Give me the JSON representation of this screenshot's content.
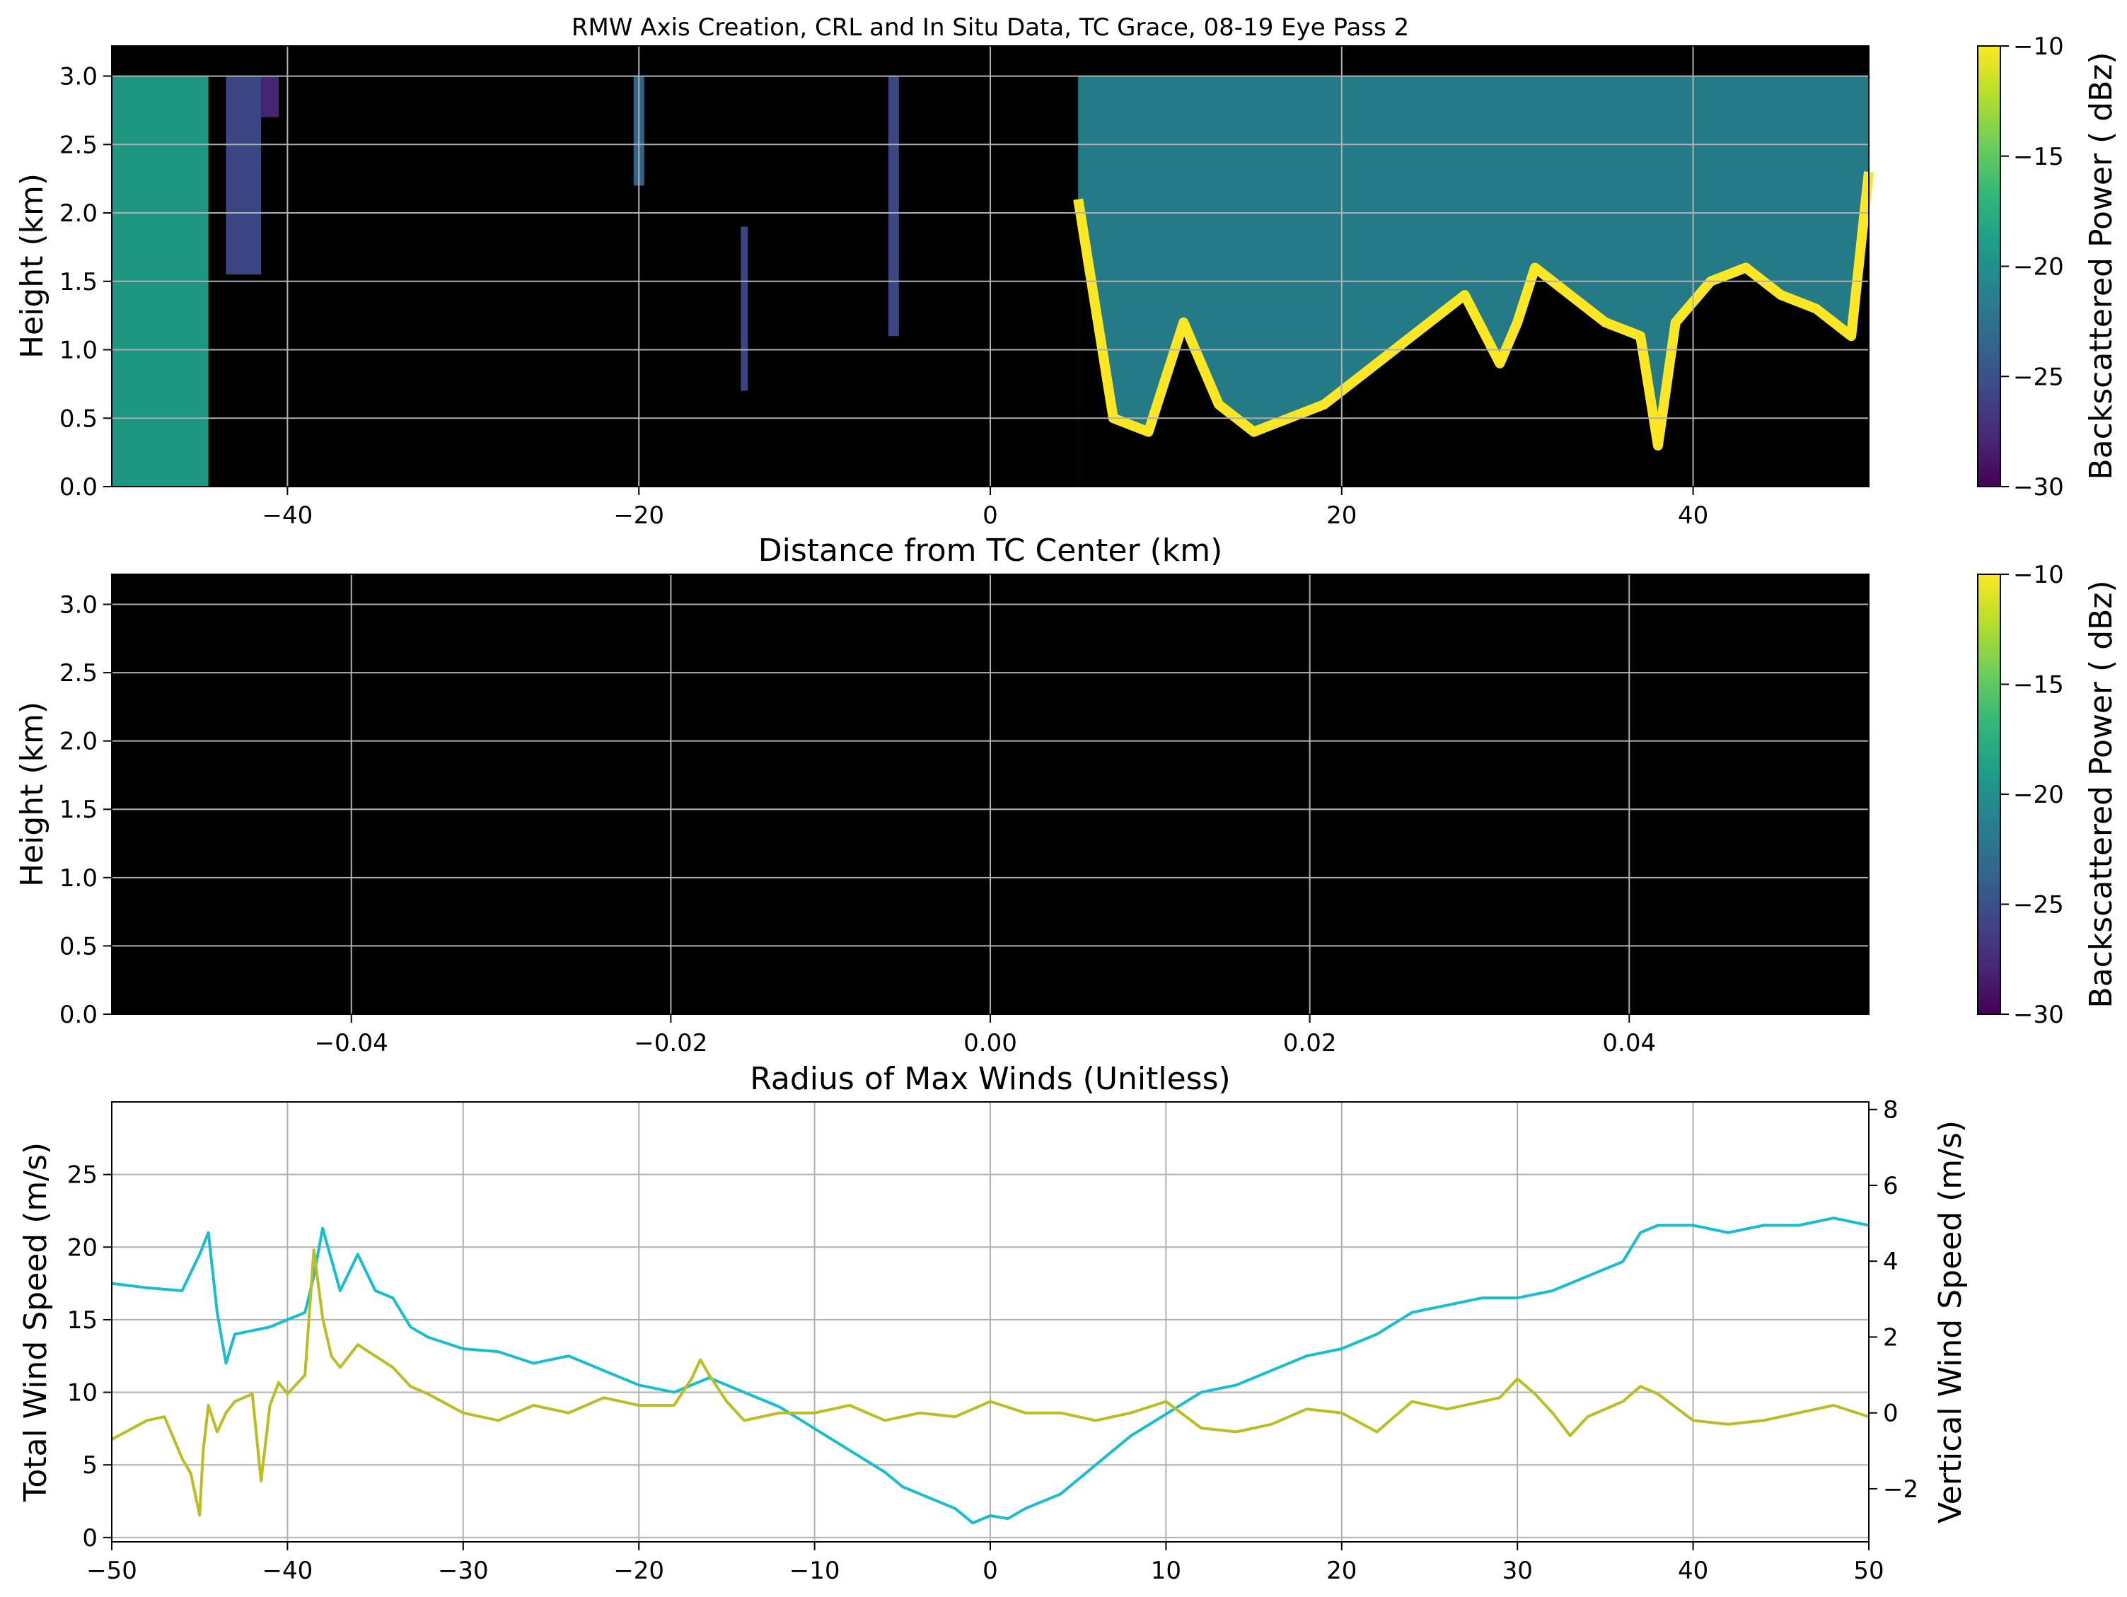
{
  "figure": {
    "title": "RMW Axis Creation, CRL and In Situ Data, TC Grace, 08-19 Eye Pass 2"
  },
  "colors": {
    "background_black": "#000000",
    "grid": "#b0b0b0",
    "total_wind": "#17becf",
    "vertical_wind": "#bcbd22",
    "viridis": [
      "#440154",
      "#482878",
      "#3e4989",
      "#31688e",
      "#26828e",
      "#1f9e89",
      "#35b779",
      "#6ece58",
      "#b5de2b",
      "#fde725"
    ]
  },
  "chart_data": [
    {
      "type": "heatmap",
      "name": "crl-distance-panel",
      "xlabel": "Distance from TC Center (km)",
      "ylabel": "Height (km)",
      "xlim": [
        -50,
        50
      ],
      "ylim": [
        0,
        3.22
      ],
      "xticks": [
        -40,
        -20,
        0,
        20,
        40
      ],
      "xtick_labels": [
        "−40",
        "−20",
        "0",
        "20",
        "40"
      ],
      "yticks": [
        0.0,
        0.5,
        1.0,
        1.5,
        2.0,
        2.5,
        3.0
      ],
      "ytick_labels": [
        "0.0",
        "0.5",
        "1.0",
        "1.5",
        "2.0",
        "2.5",
        "3.0"
      ],
      "grid": true,
      "colorbar": {
        "label": "Backscattered Power ( dBz)",
        "range": [
          -30,
          -10
        ],
        "ticks": [
          -30,
          -25,
          -20,
          -15,
          -10
        ],
        "tick_labels": [
          "−30",
          "−25",
          "−20",
          "−15",
          "−10"
        ]
      },
      "cloud_regions": [
        {
          "x0": -50,
          "x1": -44.5,
          "top": 3.0,
          "bottom": 0.0,
          "value": -20
        },
        {
          "x0": -43.5,
          "x1": -41.5,
          "top": 3.0,
          "bottom": 1.55,
          "value": -25
        },
        {
          "x0": -41.5,
          "x1": -40.5,
          "top": 3.0,
          "bottom": 2.7,
          "value": -27
        },
        {
          "x0": -20.3,
          "x1": -19.7,
          "top": 3.0,
          "bottom": 2.2,
          "value": -24
        },
        {
          "x0": -14.2,
          "x1": -13.8,
          "top": 1.9,
          "bottom": 0.7,
          "value": -26
        },
        {
          "x0": -5.8,
          "x1": -5.2,
          "top": 3.0,
          "bottom": 1.1,
          "value": -25
        },
        {
          "x0": 5.0,
          "x1": 50.0,
          "top": 3.0,
          "bottom": 0.0,
          "value": -22
        }
      ],
      "cloud_base": {
        "x": [
          5,
          7,
          9,
          11,
          13,
          15,
          17,
          19,
          21,
          23,
          25,
          27,
          29,
          30,
          31,
          33,
          35,
          37,
          38,
          39,
          41,
          43,
          45,
          47,
          49,
          50
        ],
        "height": [
          2.1,
          0.5,
          0.4,
          1.2,
          0.6,
          0.4,
          0.5,
          0.6,
          0.8,
          1.0,
          1.2,
          1.4,
          0.9,
          1.2,
          1.6,
          1.4,
          1.2,
          1.1,
          0.3,
          1.2,
          1.5,
          1.6,
          1.4,
          1.3,
          1.1,
          2.3
        ]
      }
    },
    {
      "type": "heatmap",
      "name": "crl-rmw-panel",
      "xlabel": "Radius of Max Winds (Unitless)",
      "ylabel": "Height (km)",
      "xlim": [
        -0.055,
        0.055
      ],
      "ylim": [
        0,
        3.22
      ],
      "xticks": [
        -0.04,
        -0.02,
        0.0,
        0.02,
        0.04
      ],
      "xtick_labels": [
        "−0.04",
        "−0.02",
        "0.00",
        "0.02",
        "0.04"
      ],
      "yticks": [
        0.0,
        0.5,
        1.0,
        1.5,
        2.0,
        2.5,
        3.0
      ],
      "ytick_labels": [
        "0.0",
        "0.5",
        "1.0",
        "1.5",
        "2.0",
        "2.5",
        "3.0"
      ],
      "grid": true,
      "colorbar": {
        "label": "Backscattered Power ( dBz)",
        "range": [
          -30,
          -10
        ],
        "ticks": [
          -30,
          -25,
          -20,
          -15,
          -10
        ],
        "tick_labels": [
          "−30",
          "−25",
          "−20",
          "−15",
          "−10"
        ]
      },
      "cloud_regions": []
    },
    {
      "type": "line",
      "name": "in-situ-wind-panel",
      "xlim": [
        -50,
        50
      ],
      "xticks": [
        -50,
        -40,
        -30,
        -20,
        -10,
        0,
        10,
        20,
        30,
        40,
        50
      ],
      "xtick_labels": [
        "−50",
        "−40",
        "−30",
        "−20",
        "−10",
        "0",
        "10",
        "20",
        "30",
        "40",
        "50"
      ],
      "ylabel": "Total Wind Speed (m/s)",
      "ylim": [
        -0.3,
        30
      ],
      "yticks": [
        0,
        5,
        10,
        15,
        20,
        25
      ],
      "ytick_labels": [
        "0",
        "5",
        "10",
        "15",
        "20",
        "25"
      ],
      "y2label": "Vertical Wind Speed (m/s)",
      "y2lim": [
        -3.4,
        8.2
      ],
      "y2ticks": [
        -2,
        0,
        2,
        4,
        6,
        8
      ],
      "y2tick_labels": [
        "−2",
        "0",
        "2",
        "4",
        "6",
        "8"
      ],
      "grid": true,
      "series": [
        {
          "axis": "left",
          "x": [
            -50,
            -48,
            -46,
            -45,
            -44.5,
            -44,
            -43.5,
            -43,
            -41,
            -40,
            -39,
            -38.5,
            -38,
            -37,
            -36,
            -35,
            -34,
            -33,
            -32,
            -30,
            -28,
            -26,
            -24,
            -22,
            -20,
            -18,
            -17,
            -16,
            -14,
            -12,
            -10,
            -8,
            -6,
            -5,
            -4,
            -2,
            -1,
            0,
            1,
            2,
            4,
            6,
            8,
            10,
            12,
            14,
            16,
            18,
            20,
            22,
            24,
            26,
            28,
            30,
            32,
            34,
            36,
            37,
            38,
            40,
            42,
            44,
            46,
            48,
            50
          ],
          "y": [
            17.5,
            17.2,
            17.0,
            19.5,
            21.0,
            15.5,
            12.0,
            14.0,
            14.5,
            15.0,
            15.5,
            18.0,
            21.3,
            17.0,
            19.5,
            17.0,
            16.5,
            14.5,
            13.8,
            13.0,
            12.8,
            12.0,
            12.5,
            11.5,
            10.5,
            10.0,
            10.5,
            11.0,
            10.0,
            9.0,
            7.5,
            6.0,
            4.5,
            3.5,
            3.0,
            2.0,
            1.0,
            1.5,
            1.3,
            2.0,
            3.0,
            5.0,
            7.0,
            8.5,
            10.0,
            10.5,
            11.5,
            12.5,
            13.0,
            14.0,
            15.5,
            16.0,
            16.5,
            16.5,
            17.0,
            18.0,
            19.0,
            21.0,
            21.5,
            21.5,
            21.0,
            21.5,
            21.5,
            22.0,
            21.5
          ]
        },
        {
          "axis": "right",
          "x": [
            -50,
            -48,
            -47,
            -46,
            -45.5,
            -45,
            -44.8,
            -44.5,
            -44,
            -43.5,
            -43,
            -42,
            -41.5,
            -41,
            -40.5,
            -40,
            -39,
            -38.5,
            -38,
            -37.5,
            -37,
            -36,
            -35,
            -34,
            -33,
            -32,
            -30,
            -28,
            -26,
            -24,
            -22,
            -20,
            -18,
            -17,
            -16.5,
            -16,
            -15,
            -14,
            -12,
            -10,
            -8,
            -6,
            -4,
            -2,
            0,
            2,
            4,
            6,
            8,
            10,
            12,
            14,
            16,
            18,
            20,
            22,
            24,
            26,
            28,
            29,
            30,
            31,
            32,
            33,
            34,
            36,
            37,
            38,
            40,
            42,
            44,
            46,
            48,
            50
          ],
          "y": [
            -0.7,
            -0.2,
            -0.1,
            -1.2,
            -1.6,
            -2.7,
            -1.0,
            0.2,
            -0.5,
            0.0,
            0.3,
            0.5,
            -1.8,
            0.2,
            0.8,
            0.5,
            1.0,
            4.3,
            2.5,
            1.5,
            1.2,
            1.8,
            1.5,
            1.2,
            0.7,
            0.5,
            0.0,
            -0.2,
            0.2,
            0.0,
            0.4,
            0.2,
            0.2,
            0.9,
            1.4,
            1.0,
            0.3,
            -0.2,
            0.0,
            0.0,
            0.2,
            -0.2,
            0.0,
            -0.1,
            0.3,
            0.0,
            0.0,
            -0.2,
            0.0,
            0.3,
            -0.4,
            -0.5,
            -0.3,
            0.1,
            0.0,
            -0.5,
            0.3,
            0.1,
            0.3,
            0.4,
            0.9,
            0.5,
            0.0,
            -0.6,
            -0.1,
            0.3,
            0.7,
            0.5,
            -0.2,
            -0.3,
            -0.2,
            0.0,
            0.2,
            -0.1
          ]
        }
      ]
    }
  ]
}
